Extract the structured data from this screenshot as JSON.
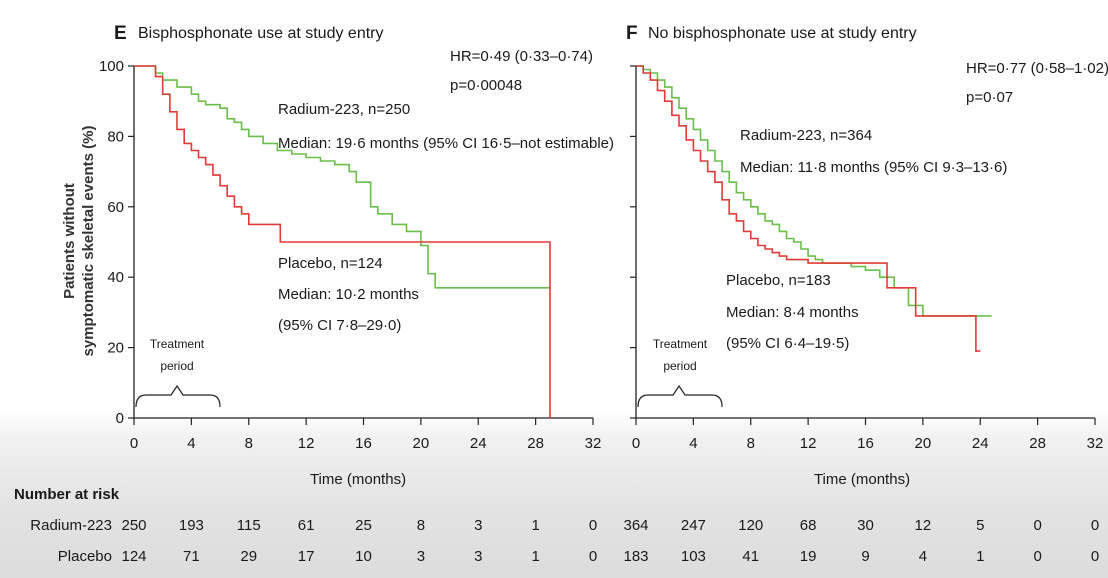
{
  "ylabel_lines": [
    "Patients without",
    "symptomatic skeletal events (%)"
  ],
  "chart_data": [
    {
      "type": "line",
      "panel_letter": "E",
      "title": "Bisphosphonate use at study entry",
      "xlabel": "Time (months)",
      "x_ticks": [
        "0",
        "4",
        "8",
        "12",
        "16",
        "20",
        "24",
        "28",
        "32"
      ],
      "y_ticks": [
        "0",
        "20",
        "40",
        "60",
        "80",
        "100"
      ],
      "xlim": [
        0,
        32
      ],
      "ylim": [
        0,
        100
      ],
      "hr_text": "HR=0·49 (0·33–0·74)",
      "p_text": "p=0·00048",
      "treatment_label_1": "Treatment",
      "treatment_label_2": "period",
      "series": [
        {
          "name": "Radium-223",
          "color": "#6abf4b",
          "label_1": "Radium-223, n=250",
          "label_2": "Median: 19·6 months (95% CI 16·5–not estimable)",
          "points": [
            [
              0,
              100
            ],
            [
              1.2,
              100
            ],
            [
              1.5,
              98
            ],
            [
              2,
              96
            ],
            [
              3,
              94
            ],
            [
              4,
              92
            ],
            [
              4.5,
              90
            ],
            [
              5,
              89
            ],
            [
              6,
              88
            ],
            [
              6.5,
              85
            ],
            [
              7,
              84
            ],
            [
              7.5,
              82
            ],
            [
              8,
              80
            ],
            [
              9,
              78
            ],
            [
              10,
              76
            ],
            [
              11,
              75
            ],
            [
              12,
              74
            ],
            [
              13,
              73
            ],
            [
              14,
              72
            ],
            [
              15,
              70
            ],
            [
              15.5,
              67
            ],
            [
              16,
              67
            ],
            [
              16.5,
              60
            ],
            [
              17,
              58
            ],
            [
              18,
              55
            ],
            [
              19,
              53
            ],
            [
              20,
              49
            ],
            [
              20.5,
              41
            ],
            [
              21,
              37
            ],
            [
              22,
              37
            ],
            [
              25,
              37
            ],
            [
              28,
              37
            ],
            [
              29,
              37
            ]
          ]
        },
        {
          "name": "Placebo",
          "color": "#e23a36",
          "label_1": "Placebo, n=124",
          "label_2": "Median: 10·2 months",
          "label_3": "(95% CI 7·8–29·0)",
          "points": [
            [
              0,
              100
            ],
            [
              1,
              100
            ],
            [
              1.5,
              97
            ],
            [
              2,
              92
            ],
            [
              2.5,
              87
            ],
            [
              3,
              82
            ],
            [
              3.5,
              78
            ],
            [
              4,
              76
            ],
            [
              4.5,
              74
            ],
            [
              5,
              72
            ],
            [
              5.5,
              69
            ],
            [
              6,
              66
            ],
            [
              6.5,
              63
            ],
            [
              7,
              60
            ],
            [
              7.5,
              58
            ],
            [
              8,
              55
            ],
            [
              9,
              55
            ],
            [
              10,
              55
            ],
            [
              10.2,
              50
            ],
            [
              12,
              50
            ],
            [
              16,
              50
            ],
            [
              20,
              50
            ],
            [
              24,
              50
            ],
            [
              29,
              50
            ],
            [
              29,
              0
            ]
          ]
        }
      ]
    },
    {
      "type": "line",
      "panel_letter": "F",
      "title": "No bisphosphonate use at study entry",
      "xlabel": "Time (months)",
      "x_ticks": [
        "0",
        "4",
        "8",
        "12",
        "16",
        "20",
        "24",
        "28",
        "32"
      ],
      "y_ticks": [
        "0",
        "20",
        "40",
        "60",
        "80",
        "100"
      ],
      "xlim": [
        0,
        32
      ],
      "ylim": [
        0,
        100
      ],
      "hr_text": "HR=0·77 (0·58–1·02)",
      "p_text": "p=0·07",
      "treatment_label_1": "Treatment",
      "treatment_label_2": "period",
      "series": [
        {
          "name": "Radium-223",
          "color": "#6abf4b",
          "label_1": "Radium-223, n=364",
          "label_2": "Median: 11·8 months (95% CI 9·3–13·6)",
          "points": [
            [
              0,
              100
            ],
            [
              0.5,
              99
            ],
            [
              1,
              98
            ],
            [
              1.5,
              96
            ],
            [
              2,
              94
            ],
            [
              2.5,
              91
            ],
            [
              3,
              88
            ],
            [
              3.5,
              85
            ],
            [
              4,
              82
            ],
            [
              4.5,
              79
            ],
            [
              5,
              76
            ],
            [
              5.5,
              73
            ],
            [
              6,
              70
            ],
            [
              6.5,
              67
            ],
            [
              7,
              64
            ],
            [
              7.5,
              62
            ],
            [
              8,
              60
            ],
            [
              8.5,
              58
            ],
            [
              9,
              56
            ],
            [
              9.5,
              55
            ],
            [
              10,
              53
            ],
            [
              10.5,
              51
            ],
            [
              11,
              50
            ],
            [
              11.5,
              48
            ],
            [
              12,
              46
            ],
            [
              12.5,
              45
            ],
            [
              13,
              44
            ],
            [
              14,
              44
            ],
            [
              15,
              43
            ],
            [
              16,
              42
            ],
            [
              17,
              40
            ],
            [
              18,
              37
            ],
            [
              19,
              32
            ],
            [
              20,
              29
            ],
            [
              22,
              29
            ],
            [
              24,
              29
            ],
            [
              24.8,
              29
            ]
          ]
        },
        {
          "name": "Placebo",
          "color": "#e23a36",
          "label_1": "Placebo, n=183",
          "label_2": "Median: 8·4 months",
          "label_3": "(95% CI 6·4–19·5)",
          "points": [
            [
              0,
              100
            ],
            [
              0.5,
              98
            ],
            [
              1,
              96
            ],
            [
              1.5,
              93
            ],
            [
              2,
              90
            ],
            [
              2.5,
              86
            ],
            [
              3,
              83
            ],
            [
              3.5,
              79
            ],
            [
              4,
              76
            ],
            [
              4.5,
              73
            ],
            [
              5,
              70
            ],
            [
              5.5,
              67
            ],
            [
              6,
              62
            ],
            [
              6.5,
              58
            ],
            [
              7,
              56
            ],
            [
              7.5,
              53
            ],
            [
              8,
              51
            ],
            [
              8.5,
              49
            ],
            [
              9,
              48
            ],
            [
              9.5,
              47
            ],
            [
              10,
              46
            ],
            [
              10.5,
              45
            ],
            [
              11,
              45
            ],
            [
              12,
              44
            ],
            [
              14,
              44
            ],
            [
              16,
              44
            ],
            [
              17.5,
              37
            ],
            [
              18,
              37
            ],
            [
              19.5,
              37
            ],
            [
              19.5,
              29
            ],
            [
              22,
              29
            ],
            [
              23.7,
              29
            ],
            [
              23.7,
              19
            ],
            [
              24,
              19
            ]
          ]
        }
      ]
    }
  ],
  "risk_table": {
    "header": "Number at risk",
    "rows": [
      {
        "label": "Radium-223",
        "e": [
          "250",
          "193",
          "115",
          "61",
          "25",
          "8",
          "3",
          "1",
          "0"
        ],
        "f": [
          "364",
          "247",
          "120",
          "68",
          "30",
          "12",
          "5",
          "0",
          "0"
        ]
      },
      {
        "label": "Placebo",
        "e": [
          "124",
          "71",
          "29",
          "17",
          "10",
          "3",
          "3",
          "1",
          "0"
        ],
        "f": [
          "183",
          "103",
          "41",
          "19",
          "9",
          "4",
          "1",
          "0",
          "0"
        ]
      }
    ]
  }
}
